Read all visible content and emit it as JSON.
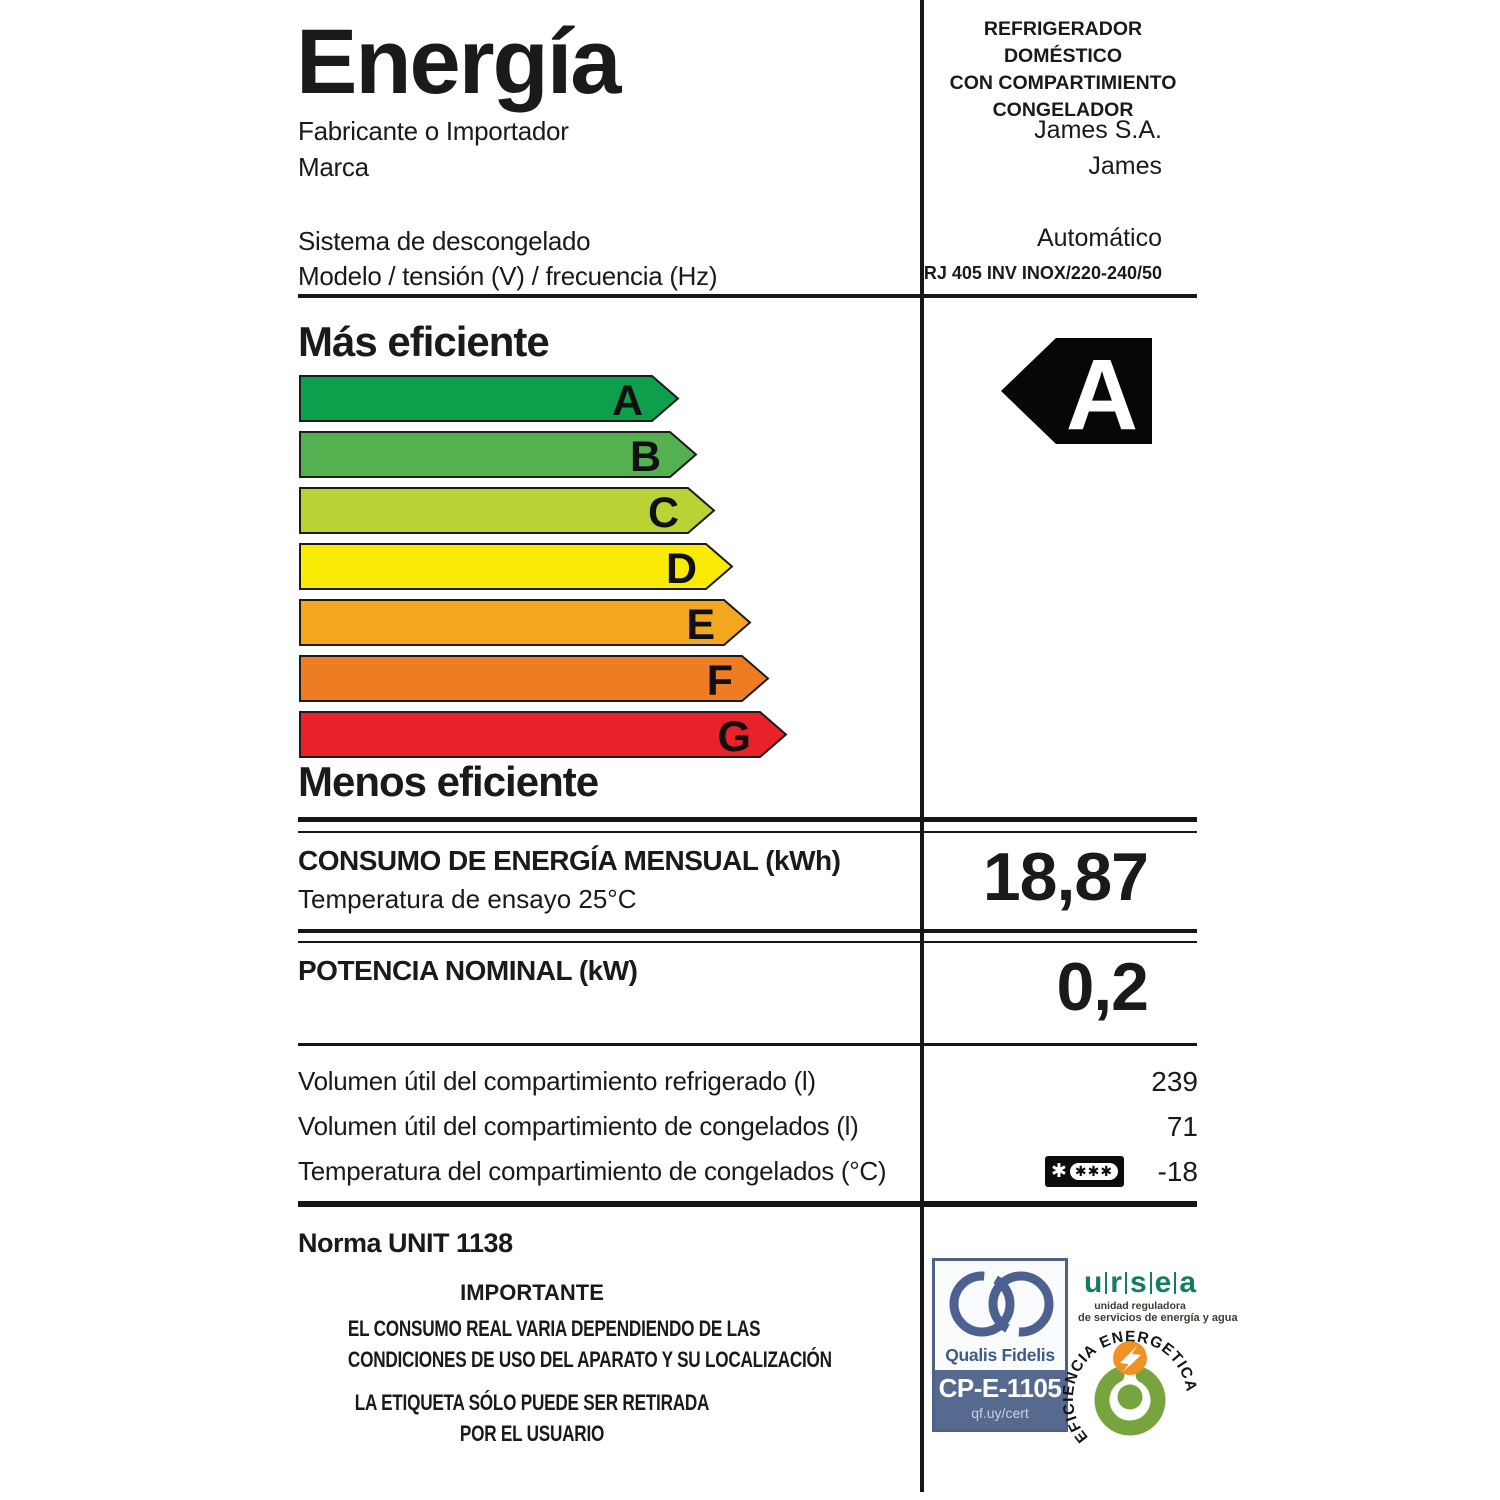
{
  "header": {
    "title": "Energía",
    "manufacturer_label": "Fabricante o Importador",
    "brand_label": "Marca",
    "defrost_label": "Sistema de descongelado",
    "model_label": "Modelo / tensión (V) / frecuencia (Hz)",
    "product_type_line1": "REFRIGERADOR DOMÉSTICO",
    "product_type_line2": "CON COMPARTIMIENTO",
    "product_type_line3": "CONGELADOR",
    "manufacturer_value": "James S.A.",
    "brand_value": "James",
    "defrost_value": "Automático",
    "model_value": "RJ 405 INV INOX/220-240/50"
  },
  "efficiency_scale": {
    "more_label": "Más eficiente",
    "less_label": "Menos eficiente",
    "rating": "A",
    "rating_arrow_color": "#070707",
    "bars": [
      {
        "letter": "A",
        "color": "#0da04c",
        "body_width": 353
      },
      {
        "letter": "B",
        "color": "#54b14f",
        "body_width": 371
      },
      {
        "letter": "C",
        "color": "#bad233",
        "body_width": 389
      },
      {
        "letter": "D",
        "color": "#f9eb06",
        "body_width": 407
      },
      {
        "letter": "E",
        "color": "#f3a71e",
        "body_width": 425
      },
      {
        "letter": "F",
        "color": "#ee7c23",
        "body_width": 443
      },
      {
        "letter": "G",
        "color": "#e92128",
        "body_width": 461
      }
    ]
  },
  "consumption": {
    "label": "CONSUMO DE ENERGÍA MENSUAL (kWh)",
    "condition": "Temperatura de ensayo 25°C",
    "value": "18,87"
  },
  "power": {
    "label": "POTENCIA NOMINAL (kW)",
    "value": "0,2"
  },
  "volumes": {
    "rows": [
      {
        "label": "Volumen útil del compartimiento refrigerado (l)",
        "value": "239"
      },
      {
        "label": "Volumen útil del compartimiento de congelados (l)",
        "value": "71"
      },
      {
        "label": "Temperatura del compartimiento de congelados (°C)",
        "value": "-18",
        "icon": "freezer-4-star-rating",
        "icon_star": "✱",
        "icon_stars_boxed": "✱✱✱"
      }
    ]
  },
  "footer": {
    "norm": "Norma UNIT 1138",
    "important_title": "IMPORTANTE",
    "notice1_line1": "EL CONSUMO REAL VARIA DEPENDIENDO DE LAS",
    "notice1_line2": "CONDICIONES DE USO DEL APARATO Y SU LOCALIZACIÓN",
    "notice2_line1": "LA ETIQUETA SÓLO PUEDE SER RETIRADA",
    "notice2_line2": "POR EL USUARIO"
  },
  "certifications": {
    "qualis": {
      "name": "Qualis Fidelis",
      "code": "CP-E-1105",
      "cert_url": "qf.uy/cert",
      "brand_color": "#4d6189"
    },
    "ursea": {
      "letters": [
        "u",
        "r",
        "s",
        "e",
        "a"
      ],
      "tagline_line1": "unidad reguladora",
      "tagline_line2": "de servicios de energía y agua",
      "brand_color": "#127c67"
    },
    "energy_efficiency_seal": {
      "text": "EFICIENCIA ENERGETICA",
      "ring_color": "#77a43c",
      "accent_color": "#ef9223"
    }
  }
}
